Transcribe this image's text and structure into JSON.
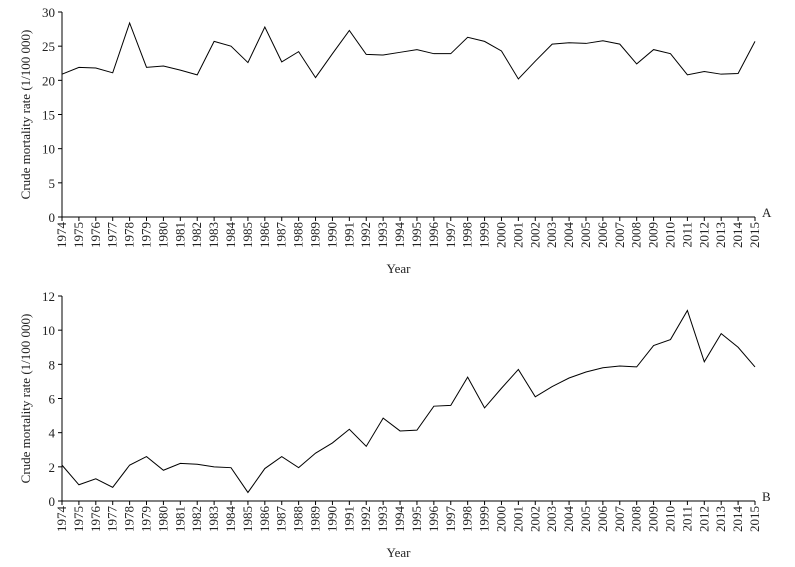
{
  "chart_data": [
    {
      "type": "line",
      "y_label": "Crude mortality rate  (1/100 000)",
      "x_label": "Year",
      "annotation": "A",
      "color": "#000000",
      "categories": [
        "1974",
        "1975",
        "1976",
        "1977",
        "1978",
        "1979",
        "1980",
        "1981",
        "1982",
        "1983",
        "1984",
        "1985",
        "1986",
        "1987",
        "1988",
        "1989",
        "1990",
        "1991",
        "1992",
        "1993",
        "1994",
        "1995",
        "1996",
        "1997",
        "1998",
        "1999",
        "2000",
        "2001",
        "2002",
        "2003",
        "2004",
        "2005",
        "2006",
        "2007",
        "2008",
        "2009",
        "2010",
        "2011",
        "2012",
        "2013",
        "2014",
        "2015"
      ],
      "values": [
        20.9,
        21.9,
        21.8,
        21.1,
        28.4,
        21.9,
        22.1,
        21.5,
        20.8,
        25.7,
        25.0,
        22.6,
        27.8,
        22.7,
        24.2,
        20.4,
        23.9,
        27.3,
        23.8,
        23.7,
        24.1,
        24.5,
        23.9,
        23.9,
        26.3,
        25.7,
        24.3,
        20.2,
        22.8,
        25.3,
        25.5,
        25.4,
        25.8,
        25.3,
        22.4,
        24.5,
        23.9,
        20.8,
        21.3,
        20.9,
        21.0,
        25.7
      ],
      "ylim": [
        0,
        30
      ],
      "yticks": [
        0,
        5,
        10,
        15,
        20,
        25,
        30
      ]
    },
    {
      "type": "line",
      "y_label": "Crude mortality rate  (1/100 000)",
      "x_label": "Year",
      "annotation": "B",
      "color": "#000000",
      "categories": [
        "1974",
        "1975",
        "1976",
        "1977",
        "1978",
        "1979",
        "1980",
        "1981",
        "1982",
        "1983",
        "1984",
        "1985",
        "1986",
        "1987",
        "1988",
        "1989",
        "1990",
        "1991",
        "1992",
        "1993",
        "1994",
        "1995",
        "1996",
        "1997",
        "1998",
        "1999",
        "2000",
        "2001",
        "2002",
        "2003",
        "2004",
        "2005",
        "2006",
        "2007",
        "2008",
        "2009",
        "2010",
        "2011",
        "2012",
        "2013",
        "2014",
        "2015"
      ],
      "values": [
        2.1,
        0.95,
        1.3,
        0.8,
        2.1,
        2.6,
        1.8,
        2.2,
        2.15,
        2.0,
        1.95,
        0.5,
        1.9,
        2.6,
        1.95,
        2.8,
        3.4,
        4.2,
        3.2,
        4.85,
        4.1,
        4.15,
        5.55,
        5.6,
        7.25,
        5.45,
        6.6,
        7.7,
        6.1,
        6.7,
        7.2,
        7.55,
        7.8,
        7.9,
        7.85,
        9.1,
        9.45,
        11.15,
        8.15,
        9.8,
        9.0,
        7.85
      ],
      "ylim": [
        0,
        12
      ],
      "yticks": [
        0,
        2,
        4,
        6,
        8,
        10,
        12
      ]
    }
  ]
}
